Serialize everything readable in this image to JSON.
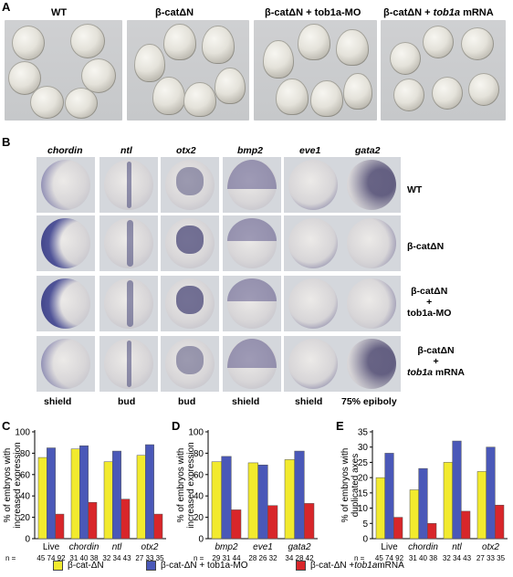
{
  "panel_a": {
    "letter": "A",
    "titles": [
      "WT",
      "β-catΔN",
      "β-catΔN + tob1a-MO",
      "β-catΔN + "
    ],
    "title4_italic": "tob1a",
    "title4_tail": " mRNA"
  },
  "panel_b": {
    "letter": "B",
    "genes": [
      "chordin",
      "ntl",
      "otx2",
      "bmp2",
      "eve1",
      "gata2"
    ],
    "rows": [
      {
        "lines": [
          "WT"
        ]
      },
      {
        "lines": [
          "β-catΔN"
        ]
      },
      {
        "lines": [
          "β-catΔN",
          "+",
          "tob1a-MO"
        ]
      },
      {
        "lines": [
          "β-catΔN",
          "+"
        ],
        "italic_line": "tob1a",
        "tail": " mRNA"
      }
    ],
    "stages": [
      "shield",
      "bud",
      "bud",
      "shield",
      "shield",
      "75% epiboly"
    ]
  },
  "legend": {
    "items": [
      {
        "label": "β-cat-ΔN",
        "color": "#f2ea2e"
      },
      {
        "label": "β-cat-ΔN + tob1a-MO",
        "color": "#4a58b8"
      },
      {
        "label_prefix": "β-cat-ΔN + ",
        "label_italic": "tob1a",
        "label_suffix": " mRNA",
        "color": "#d8262a"
      }
    ]
  },
  "chart_data": [
    {
      "panel": "C",
      "type": "bar",
      "ylabel": "% of embryos with increased expression",
      "ylim": [
        0,
        100
      ],
      "yticks": [
        0,
        20,
        40,
        60,
        80,
        100
      ],
      "categories": [
        "Live",
        "chordin",
        "ntl",
        "otx2"
      ],
      "italic_categories": [
        false,
        true,
        true,
        true
      ],
      "series": [
        {
          "name": "β-cat-ΔN",
          "color": "#f2ea2e",
          "values": [
            76,
            84,
            72,
            78
          ]
        },
        {
          "name": "β-cat-ΔN + tob1a-MO",
          "color": "#4a58b8",
          "values": [
            85,
            87,
            82,
            88
          ]
        },
        {
          "name": "β-cat-ΔN + tob1a mRNA",
          "color": "#d8262a",
          "values": [
            23,
            34,
            37,
            23
          ]
        }
      ],
      "n_prefix": "n = ",
      "n_values": [
        "45 74 92",
        "31 40 38",
        "32 34 43",
        "27 33 35"
      ]
    },
    {
      "panel": "D",
      "type": "bar",
      "ylabel": "% of embryos with increased expression",
      "ylim": [
        0,
        100
      ],
      "yticks": [
        0,
        20,
        40,
        60,
        80,
        100
      ],
      "categories": [
        "bmp2",
        "eve1",
        "gata2"
      ],
      "italic_categories": [
        true,
        true,
        true
      ],
      "series": [
        {
          "name": "β-cat-ΔN",
          "color": "#f2ea2e",
          "values": [
            72,
            71,
            74
          ]
        },
        {
          "name": "β-cat-ΔN + tob1a-MO",
          "color": "#4a58b8",
          "values": [
            77,
            69,
            82
          ]
        },
        {
          "name": "β-cat-ΔN + tob1a mRNA",
          "color": "#d8262a",
          "values": [
            27,
            31,
            33
          ]
        }
      ],
      "n_prefix": "n = ",
      "n_values": [
        "29 31 44",
        "28 26 32",
        "34 28 42"
      ]
    },
    {
      "panel": "E",
      "type": "bar",
      "ylabel": "% of embryos with duplicated axes",
      "ylim": [
        0,
        35
      ],
      "yticks": [
        0,
        5,
        10,
        15,
        20,
        25,
        30,
        35
      ],
      "categories": [
        "Live",
        "chordin",
        "ntl",
        "otx2"
      ],
      "italic_categories": [
        false,
        true,
        true,
        true
      ],
      "series": [
        {
          "name": "β-cat-ΔN",
          "color": "#f2ea2e",
          "values": [
            20,
            16,
            25,
            22
          ]
        },
        {
          "name": "β-cat-ΔN + tob1a-MO",
          "color": "#4a58b8",
          "values": [
            28,
            23,
            32,
            30
          ]
        },
        {
          "name": "β-cat-ΔN + tob1a mRNA",
          "color": "#d8262a",
          "values": [
            7,
            5,
            9,
            11
          ]
        }
      ],
      "n_prefix": "n = ",
      "n_values": [
        "45 74 92",
        "31 40 38",
        "32 34 43",
        "27 33 35"
      ]
    }
  ]
}
